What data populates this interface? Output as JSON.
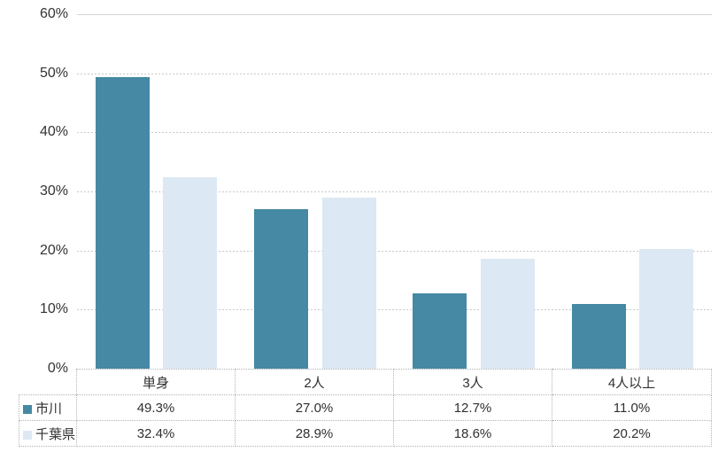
{
  "chart_data": {
    "type": "bar",
    "title": "",
    "xlabel": "",
    "ylabel": "",
    "categories": [
      "単身",
      "2人",
      "3人",
      "4人以上"
    ],
    "series": [
      {
        "name": "市川",
        "values": [
          49.3,
          27.0,
          12.7,
          11.0
        ],
        "display": [
          "49.3%",
          "27.0%",
          "12.7%",
          "11.0%"
        ],
        "color": "#4589A4"
      },
      {
        "name": "千葉県",
        "values": [
          32.4,
          28.9,
          18.6,
          20.2
        ],
        "display": [
          "32.4%",
          "28.9%",
          "18.6%",
          "20.2%"
        ],
        "color": "#DCE8F4"
      }
    ],
    "ylim": [
      0,
      60
    ],
    "ytick_step": 10,
    "y_tick_labels": [
      "60%",
      "50%",
      "40%",
      "30%",
      "20%",
      "10%",
      "0%"
    ],
    "grid": "horizontal",
    "gridline_style": "dashed-except-top",
    "legend_position": "data-table-left",
    "data_table_shown": true
  },
  "colors": {
    "series_1": "#4589A4",
    "series_2": "#DCE8F4",
    "gridline": "#C9C9C9",
    "gridline_top": "#D4D4D4",
    "table_border": "#B3B3B3",
    "text": "#303030",
    "background": "#FFFFFF"
  }
}
